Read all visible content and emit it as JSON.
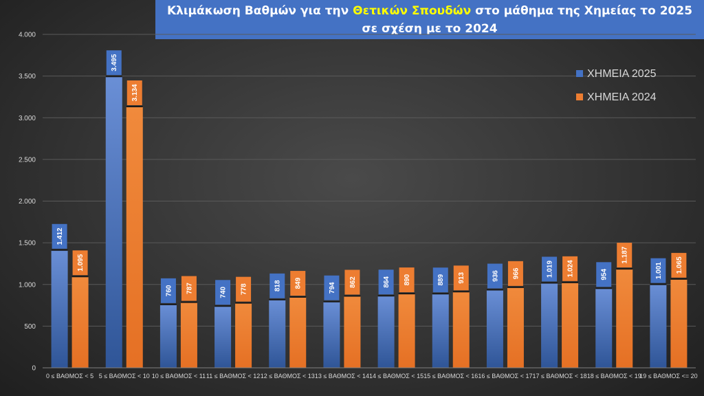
{
  "title": {
    "line1_before": "Κλιμάκωση Βαθμών για την ",
    "line1_highlight": "Θετικών Σπουδών",
    "line1_after": " στο μάθημα της  Χημείας το 2025",
    "line2": "σε σχέση με το 2024"
  },
  "chart_data": {
    "type": "bar",
    "title": "Κλιμάκωση Βαθμών για την Θετικών Σπουδών στο μάθημα της  Χημείας το 2025 σε σχέση με το 2024",
    "categories": [
      "0 ≤ ΒΑΘΜΟΣ < 5",
      "5 ≤ ΒΑΘΜΟΣ < 10",
      "10 ≤ ΒΑΘΜΟΣ < 11",
      "11 ≤ ΒΑΘΜΟΣ < 12",
      "12 ≤ ΒΑΘΜΟΣ < 13",
      "13 ≤ ΒΑΘΜΟΣ < 14",
      "14 ≤ ΒΑΘΜΟΣ < 15",
      "15 ≤ ΒΑΘΜΟΣ < 16",
      "16 ≤ ΒΑΘΜΟΣ < 17",
      "17 ≤ ΒΑΘΜΟΣ < 18",
      "18 ≤ ΒΑΘΜΟΣ < 19",
      "19 ≤ ΒΑΘΜΟΣ <= 20"
    ],
    "series": [
      {
        "name": "ΧΗΜΕΙΑ 2025",
        "color": "#4472c4",
        "values": [
          1412,
          3495,
          760,
          740,
          818,
          794,
          864,
          889,
          936,
          1019,
          954,
          1001
        ],
        "labels": [
          "1.412",
          "3.495",
          "760",
          "740",
          "818",
          "794",
          "864",
          "889",
          "936",
          "1.019",
          "954",
          "1.001"
        ]
      },
      {
        "name": "ΧΗΜΕΙΑ 2024",
        "color": "#ed7d31",
        "values": [
          1095,
          3134,
          787,
          778,
          849,
          862,
          890,
          913,
          966,
          1024,
          1187,
          1065
        ],
        "labels": [
          "1.095",
          "3.134",
          "787",
          "778",
          "849",
          "862",
          "890",
          "913",
          "966",
          "1.024",
          "1.187",
          "1.065"
        ]
      }
    ],
    "yticks": [
      0,
      500,
      1000,
      1500,
      2000,
      2500,
      3000,
      3500,
      4000
    ],
    "ytick_labels": [
      "0",
      "500",
      "1.000",
      "1.500",
      "2.000",
      "2.500",
      "3.000",
      "3.500",
      "4.000"
    ],
    "ylim": [
      0,
      4000
    ],
    "grid": true,
    "legend_position": "top-right"
  }
}
